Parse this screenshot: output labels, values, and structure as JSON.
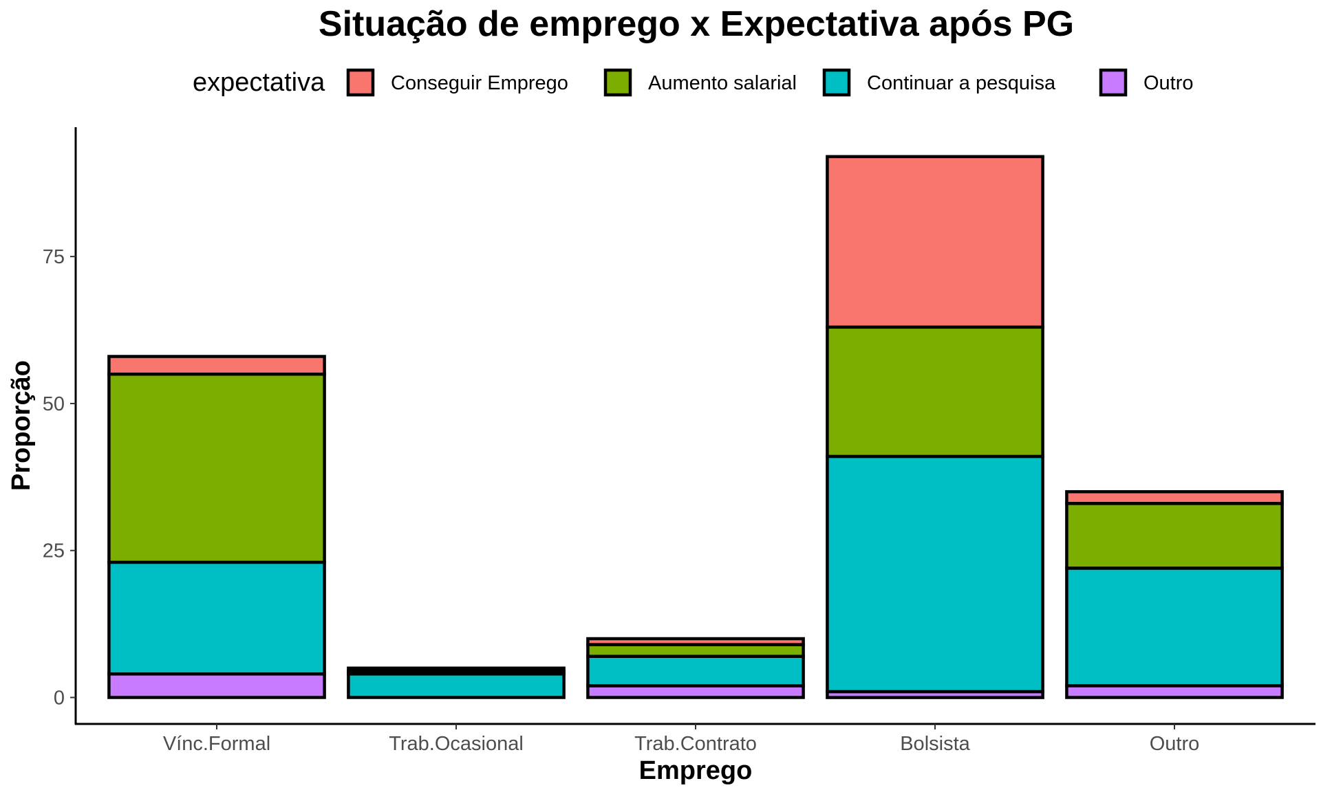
{
  "chart_data": {
    "type": "bar",
    "stacked": true,
    "title": "Situação de emprego x Expectativa após PG",
    "xlabel": "Emprego",
    "ylabel": "Proporção",
    "legend_title": "expectativa",
    "legend_position": "top",
    "grid": false,
    "ylim": [
      -4.5,
      97
    ],
    "yticks": [
      0,
      25,
      50,
      75
    ],
    "categories": [
      "Vínc.Formal",
      "Trab.Ocasional",
      "Trab.Contrato",
      "Bolsista",
      "Outro"
    ],
    "series": [
      {
        "name": "Conseguir Emprego",
        "color": "#F8766D",
        "values": [
          3,
          0.5,
          1,
          29,
          2
        ]
      },
      {
        "name": "Aumento salarial",
        "color": "#7CAE00",
        "values": [
          32,
          0.5,
          2,
          22,
          11
        ]
      },
      {
        "name": "Continuar a pesquisa",
        "color": "#00BFC4",
        "values": [
          19,
          4,
          5,
          40,
          20
        ]
      },
      {
        "name": "Outro",
        "color": "#C77CFF",
        "values": [
          4,
          0,
          2,
          1,
          2
        ]
      }
    ]
  }
}
